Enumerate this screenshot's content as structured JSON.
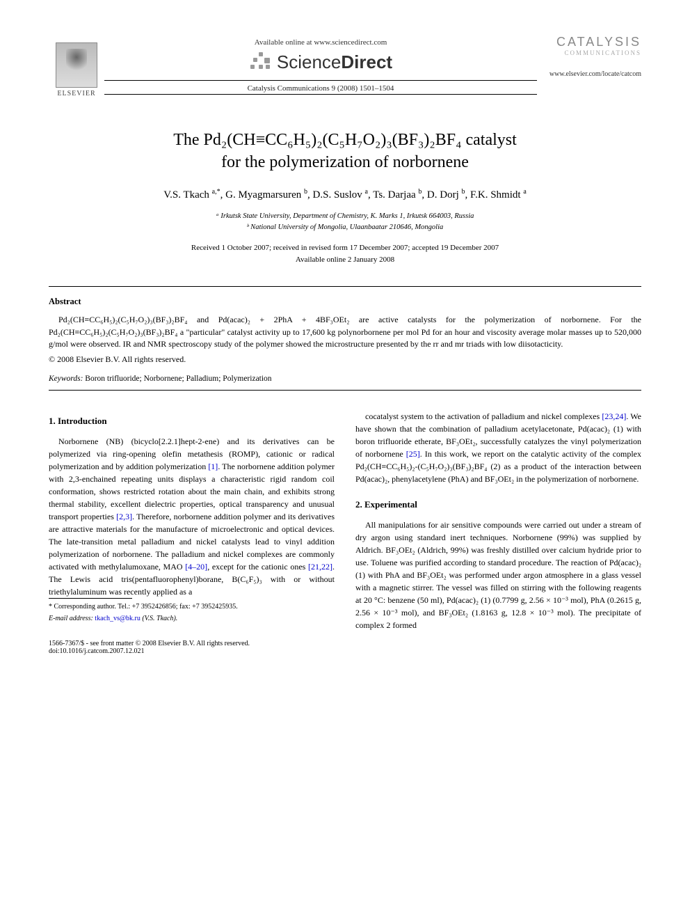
{
  "header": {
    "elsevier_label": "ELSEVIER",
    "available_online": "Available online at www.sciencedirect.com",
    "scidirect_prefix": "Science",
    "scidirect_suffix": "Direct",
    "journal_reference": "Catalysis Communications 9 (2008) 1501–1504",
    "journal_name": "CATALYSIS",
    "journal_sub": "COMMUNICATIONS",
    "locate_url": "www.elsevier.com/locate/catcom"
  },
  "title": {
    "line1": "The Pd₂(CH≡CC₆H₅)₂(C₅H₇O₂)₃(BF₃)₂BF₄ catalyst",
    "line2": "for the polymerization of norbornene"
  },
  "authors_html": "V.S. Tkach <sup>a,*</sup>, G. Myagmarsuren <sup>b</sup>, D.S. Suslov <sup>a</sup>, Ts. Darjaa <sup>b</sup>, D. Dorj <sup>b</sup>, F.K. Shmidt <sup>a</sup>",
  "affiliations": {
    "a": "ᵃ Irkutsk State University, Department of Chemistry, K. Marks 1, Irkutsk 664003, Russia",
    "b": "ᵇ National University of Mongolia, Ulaanbaatar 210646, Mongolia"
  },
  "dates": {
    "received": "Received 1 October 2007; received in revised form 17 December 2007; accepted 19 December 2007",
    "available": "Available online 2 January 2008"
  },
  "abstract": {
    "label": "Abstract",
    "text": "Pd₂(CH≡CC₆H₅)₂(C₅H₇O₂)₃(BF₃)₂BF₄ and Pd(acac)₂ + 2PhA + 4BF₃OEt₂ are active catalysts for the polymerization of norbornene. For the Pd₂(CH≡CC₆H₅)₂(C₅H₇O₂)₃(BF₃)₂BF₄ a \"particular\" catalyst activity up to 17,600 kg polynorbornene per mol Pd for an hour and viscosity average molar masses up to 520,000 g/mol were observed. IR and NMR spectroscopy study of the polymer showed the microstructure presented by the rr and mr triads with low diisotacticity.",
    "copyright": "© 2008 Elsevier B.V. All rights reserved."
  },
  "keywords": {
    "label": "Keywords:",
    "text": "Boron trifluoride; Norbornene; Palladium; Polymerization"
  },
  "sections": {
    "intro_heading": "1. Introduction",
    "intro_p1a": "Norbornene (NB) (bicyclo[2.2.1]hept-2-ene) and its derivatives can be polymerized via ring-opening olefin metathesis (ROMP), cationic or radical polymerization and by addition polymerization ",
    "intro_ref1": "[1]",
    "intro_p1b": ". The norbornene addition polymer with 2,3-enchained repeating units displays a characteristic rigid random coil conformation, shows restricted rotation about the main chain, and exhibits strong thermal stability, excellent dielectric properties, optical transparency and unusual transport properties ",
    "intro_ref2": "[2,3]",
    "intro_p1c": ". Therefore, norbornene addition polymer and its derivatives are attractive materials for the manufacture of microelectronic and optical devices. The late-transition metal palladium and nickel catalysts lead to vinyl addition polymerization of norbornene. The palladium and nickel complexes are commonly activated with methylalumoxane, MAO ",
    "intro_ref3": "[4–20]",
    "intro_p1d": ", except for the cationic ones ",
    "intro_ref4": "[21,22]",
    "intro_p1e": ". The Lewis acid tris(pentafluorophenyl)borane, B(C₆F₅)₃ with or without triethylaluminum was recently applied as a ",
    "intro_p2a": "cocatalyst system to the activation of palladium and nickel complexes ",
    "intro_ref5": "[23,24]",
    "intro_p2b": ". We have shown that the combination of palladium acetylacetonate, Pd(acac)₂ (1) with boron trifluoride etherate, BF₃OEt₂, successfully catalyzes the vinyl polymerization of norbornene ",
    "intro_ref6": "[25]",
    "intro_p2c": ". In this work, we report on the catalytic activity of the complex Pd₂(CH≡CC₆H₅)₂-(C₅H₇O₂)₃(BF₃)₂BF₄ (2) as a product of the interaction between Pd(acac)₂, phenylacetylene (PhA) and BF₃OEt₂ in the polymerization of norbornene.",
    "exp_heading": "2. Experimental",
    "exp_p1": "All manipulations for air sensitive compounds were carried out under a stream of dry argon using standard inert techniques. Norbornene (99%) was supplied by Aldrich. BF₃OEt₂ (Aldrich, 99%) was freshly distilled over calcium hydride prior to use. Toluene was purified according to standard procedure. The reaction of Pd(acac)₂ (1) with PhA and BF₃OEt₂ was performed under argon atmosphere in a glass vessel with a magnetic stirrer. The vessel was filled on stirring with the following reagents at 20 °C: benzene (50 ml), Pd(acac)₂ (1) (0.7799 g, 2.56 × 10⁻³ mol), PhA (0.2615 g, 2.56 × 10⁻³ mol), and BF₃OEt₂ (1.8163 g, 12.8 × 10⁻³ mol). The precipitate of complex 2 formed"
  },
  "footnote": {
    "corresponding": "* Corresponding author. Tel.: +7 3952426856; fax: +7 3952425935.",
    "email_label": "E-mail address:",
    "email": "tkach_vs@bk.ru",
    "email_tail": "(V.S. Tkach)."
  },
  "footer": {
    "issn": "1566-7367/$ - see front matter © 2008 Elsevier B.V. All rights reserved.",
    "doi": "doi:10.1016/j.catcom.2007.12.021"
  },
  "colors": {
    "link": "#0000cc",
    "text": "#000000",
    "gray": "#888888",
    "bg": "#ffffff"
  }
}
